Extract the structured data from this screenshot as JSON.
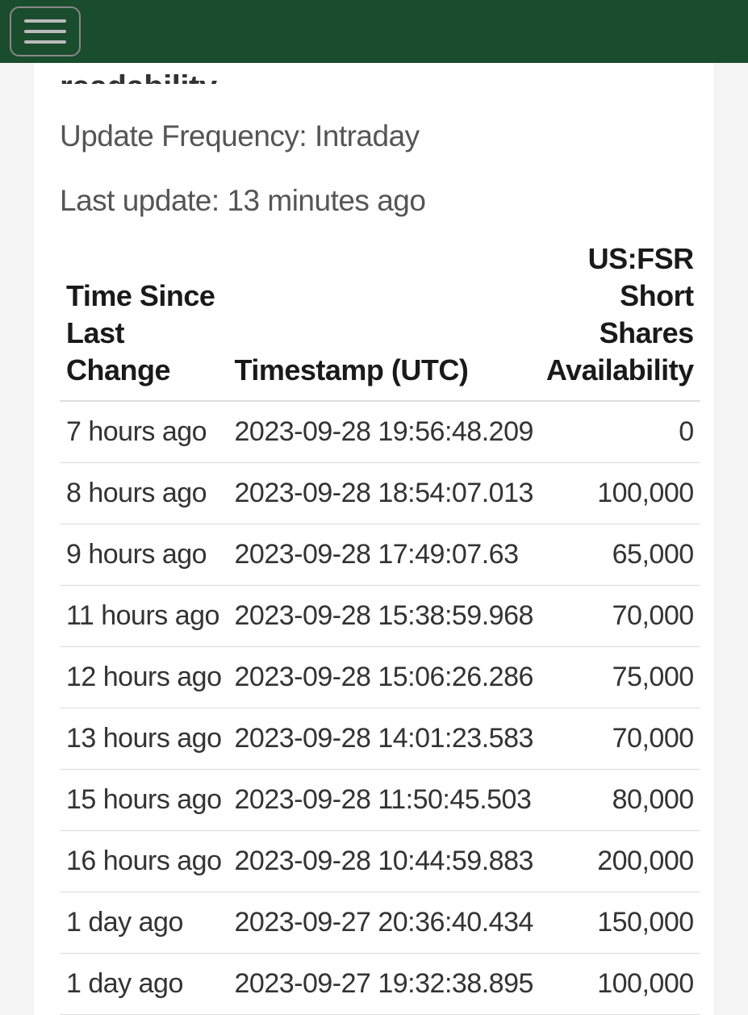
{
  "header": {
    "bar_color": "#1a4d2e"
  },
  "card": {
    "truncated_heading": "readability.",
    "update_frequency_label": "Update Frequency: Intraday",
    "last_update_label": "Last update: 13 minutes ago"
  },
  "table": {
    "type": "table",
    "background_color": "#ffffff",
    "border_color": "#dddddd",
    "header_fontsize": 36,
    "cell_fontsize": 34,
    "text_color": "#333333",
    "header_text_color": "#1a1a1a",
    "columns": [
      {
        "key": "time_since",
        "label": "Time Since Last Change",
        "align": "left",
        "width_pct": 23
      },
      {
        "key": "timestamp",
        "label": "Timestamp (UTC)",
        "align": "left",
        "width_pct": 47
      },
      {
        "key": "availability",
        "label": "US:FSR Short Shares Availability",
        "align": "right",
        "width_pct": 30
      }
    ],
    "rows": [
      {
        "time_since": "7 hours ago",
        "timestamp": "2023-09-28 19:56:48.209",
        "availability": "0"
      },
      {
        "time_since": "8 hours ago",
        "timestamp": "2023-09-28 18:54:07.013",
        "availability": "100,000"
      },
      {
        "time_since": "9 hours ago",
        "timestamp": "2023-09-28 17:49:07.63",
        "availability": "65,000"
      },
      {
        "time_since": "11 hours ago",
        "timestamp": "2023-09-28 15:38:59.968",
        "availability": "70,000"
      },
      {
        "time_since": "12 hours ago",
        "timestamp": "2023-09-28 15:06:26.286",
        "availability": "75,000"
      },
      {
        "time_since": "13 hours ago",
        "timestamp": "2023-09-28 14:01:23.583",
        "availability": "70,000"
      },
      {
        "time_since": "15 hours ago",
        "timestamp": "2023-09-28 11:50:45.503",
        "availability": "80,000"
      },
      {
        "time_since": "16 hours ago",
        "timestamp": "2023-09-28 10:44:59.883",
        "availability": "200,000"
      },
      {
        "time_since": "1 day ago",
        "timestamp": "2023-09-27 20:36:40.434",
        "availability": "150,000"
      },
      {
        "time_since": "1 day ago",
        "timestamp": "2023-09-27 19:32:38.895",
        "availability": "100,000"
      }
    ]
  }
}
